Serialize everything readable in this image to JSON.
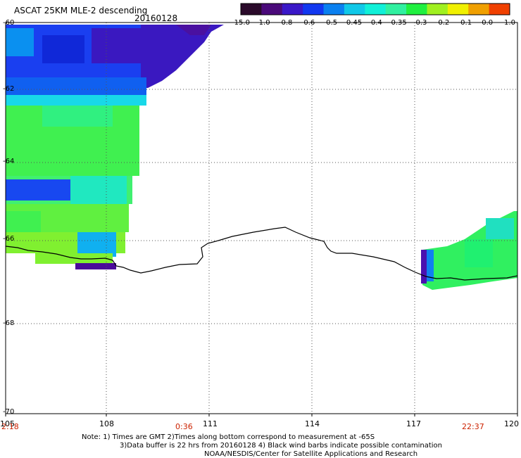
{
  "header": {
    "title": "ASCAT 25KM MLE-2 descending",
    "date": "20160128"
  },
  "colorbar": {
    "labels": [
      "-15.0",
      "-1.0",
      "-0.8",
      "-0.6",
      "-0.5",
      "-0.45",
      "-0.4",
      "-0.35",
      "-0.3",
      "-0.2",
      "-0.1",
      "0.0",
      "1.0"
    ],
    "colors": [
      "#2a0a2a",
      "#4a0a7a",
      "#3a18c8",
      "#1238f0",
      "#0a80f0",
      "#10c8e8",
      "#10f0d8",
      "#30f0a0",
      "#20f040",
      "#a0f020",
      "#f0f000",
      "#f0a000",
      "#f04000"
    ]
  },
  "axes": {
    "y_labels": [
      "-60",
      "-62",
      "-64",
      "-66",
      "-68",
      "-70"
    ],
    "x_labels": [
      "105",
      "108",
      "111",
      "114",
      "117",
      "120"
    ],
    "time_labels": [
      "2:18",
      "0:36",
      "22:37"
    ]
  },
  "notes": [
    "Note: 1) Times are GMT 2)Times along bottom correspond to measurement at -65S",
    "3)Data buffer is 22 hrs from 20160128 4) Black wind barbs indicate possible contamination",
    "NOAA/NESDIS/Center for Satellite Applications and Research"
  ]
}
